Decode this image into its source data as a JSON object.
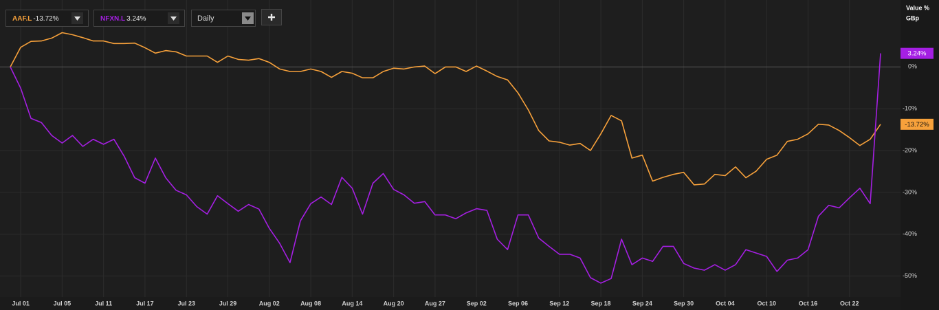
{
  "chart_data": {
    "type": "line",
    "axis_header": [
      "Value %",
      "GBp"
    ],
    "controls": {
      "interval": "Daily"
    },
    "categories": [
      null,
      "Jul 01",
      null,
      null,
      null,
      "Jul 05",
      null,
      null,
      null,
      "Jul 11",
      null,
      null,
      null,
      "Jul 17",
      null,
      null,
      null,
      "Jul 23",
      null,
      null,
      null,
      "Jul 29",
      null,
      null,
      null,
      "Aug 02",
      null,
      null,
      null,
      "Aug 08",
      null,
      null,
      null,
      "Aug 14",
      null,
      null,
      null,
      "Aug 20",
      null,
      null,
      null,
      "Aug 27",
      null,
      null,
      null,
      "Sep 02",
      null,
      null,
      null,
      "Sep 06",
      null,
      null,
      null,
      "Sep 12",
      null,
      null,
      null,
      "Sep 18",
      null,
      null,
      null,
      "Sep 24",
      null,
      null,
      null,
      "Sep 30",
      null,
      null,
      null,
      "Oct 04",
      null,
      null,
      null,
      "Oct 10",
      null,
      null,
      null,
      "Oct 16",
      null,
      null,
      null,
      "Oct 22",
      null,
      null,
      null
    ],
    "series": [
      {
        "name": "AAF.L",
        "color": "#f7a13b",
        "values": [
          0,
          4.7,
          6.1,
          6.2,
          6.9,
          8.2,
          7.7,
          7.0,
          6.2,
          6.2,
          5.6,
          5.6,
          5.7,
          4.6,
          3.3,
          3.9,
          3.6,
          2.6,
          2.6,
          2.6,
          1.1,
          2.6,
          1.8,
          1.6,
          2.0,
          1.1,
          -0.5,
          -1.1,
          -1.1,
          -0.5,
          -1.1,
          -2.5,
          -1.1,
          -1.5,
          -2.6,
          -2.6,
          -1.1,
          -0.3,
          -0.5,
          0,
          0.2,
          -1.6,
          0,
          0,
          -1.1,
          0.2,
          -1.0,
          -2.3,
          -3.1,
          -6.2,
          -10.3,
          -15.2,
          -17.7,
          -18.0,
          -18.7,
          -18.3,
          -20.0,
          -16.0,
          -11.6,
          -12.9,
          -21.8,
          -21.1,
          -27.3,
          -26.4,
          -25.7,
          -25.2,
          -28.2,
          -28.0,
          -25.7,
          -26.0,
          -23.9,
          -26.5,
          -24.9,
          -22.1,
          -21.1,
          -17.8,
          -17.3,
          -16.0,
          -13.7,
          -13.9,
          -15.2,
          -16.9,
          -18.8,
          -17.3,
          -13.72
        ],
        "value_labels": [
          null,
          null,
          null,
          null,
          null,
          null,
          null,
          null,
          null,
          null,
          null,
          null,
          null,
          null,
          null,
          null,
          null,
          null,
          null,
          null,
          null,
          null,
          null,
          null,
          null,
          null,
          null,
          null,
          null,
          null,
          null,
          null,
          null,
          null,
          null,
          null,
          null,
          null,
          null,
          null,
          null,
          null,
          null,
          null,
          null,
          null,
          null,
          null,
          null,
          null,
          null,
          null,
          null,
          null,
          null,
          null,
          null,
          null,
          null,
          null,
          null,
          null,
          null,
          null,
          null,
          null,
          null,
          null,
          null,
          null,
          null,
          null,
          null,
          null,
          null,
          null,
          null,
          null,
          null,
          null,
          null,
          null,
          null,
          null,
          "-13.72%"
        ]
      },
      {
        "name": "NFXN.L",
        "color": "#a51fe3",
        "values": [
          0,
          -5.1,
          -12.3,
          -13.3,
          -16.4,
          -18.2,
          -16.4,
          -19.0,
          -17.3,
          -18.5,
          -17.3,
          -21.4,
          -26.5,
          -27.8,
          -21.8,
          -26.5,
          -29.5,
          -30.6,
          -33.4,
          -35.2,
          -30.8,
          -32.7,
          -34.5,
          -32.9,
          -34.0,
          -38.6,
          -42.2,
          -46.8,
          -36.8,
          -32.7,
          -31.1,
          -32.9,
          -26.4,
          -29.0,
          -35.2,
          -27.8,
          -25.5,
          -29.3,
          -30.6,
          -32.6,
          -32.2,
          -35.4,
          -35.4,
          -36.3,
          -34.9,
          -33.9,
          -34.3,
          -41.2,
          -43.7,
          -35.4,
          -35.4,
          -40.9,
          -42.9,
          -44.8,
          -44.8,
          -45.7,
          -50.4,
          -51.7,
          -50.6,
          -41.2,
          -47.3,
          -45.7,
          -46.5,
          -42.9,
          -42.9,
          -47.0,
          -48.1,
          -48.6,
          -47.3,
          -48.6,
          -47.3,
          -43.7,
          -44.5,
          -45.3,
          -48.9,
          -46.2,
          -45.7,
          -43.7,
          -35.7,
          -33.1,
          -33.7,
          -31.3,
          -29.0,
          -32.7,
          3.24
        ],
        "value_labels": [
          null,
          null,
          null,
          null,
          null,
          null,
          null,
          null,
          null,
          null,
          null,
          null,
          null,
          null,
          null,
          null,
          null,
          null,
          null,
          null,
          null,
          null,
          null,
          null,
          null,
          null,
          null,
          null,
          null,
          null,
          null,
          null,
          null,
          null,
          null,
          null,
          null,
          null,
          null,
          null,
          null,
          null,
          null,
          null,
          null,
          null,
          null,
          null,
          null,
          null,
          null,
          null,
          null,
          null,
          null,
          null,
          null,
          null,
          null,
          null,
          null,
          null,
          null,
          null,
          null,
          null,
          null,
          null,
          null,
          null,
          null,
          null,
          null,
          null,
          null,
          null,
          null,
          null,
          null,
          null,
          null,
          null,
          null,
          null,
          "3.24%"
        ]
      }
    ],
    "ylim": [
      -55,
      16
    ],
    "yticks": [
      {
        "value": 0,
        "label": "0%"
      },
      {
        "value": -10,
        "label": "-10%"
      },
      {
        "value": -20,
        "label": "-20%"
      },
      {
        "value": -30,
        "label": "-30%"
      },
      {
        "value": -40,
        "label": "-40%"
      },
      {
        "value": -50,
        "label": "-50%"
      }
    ],
    "grid": true
  }
}
